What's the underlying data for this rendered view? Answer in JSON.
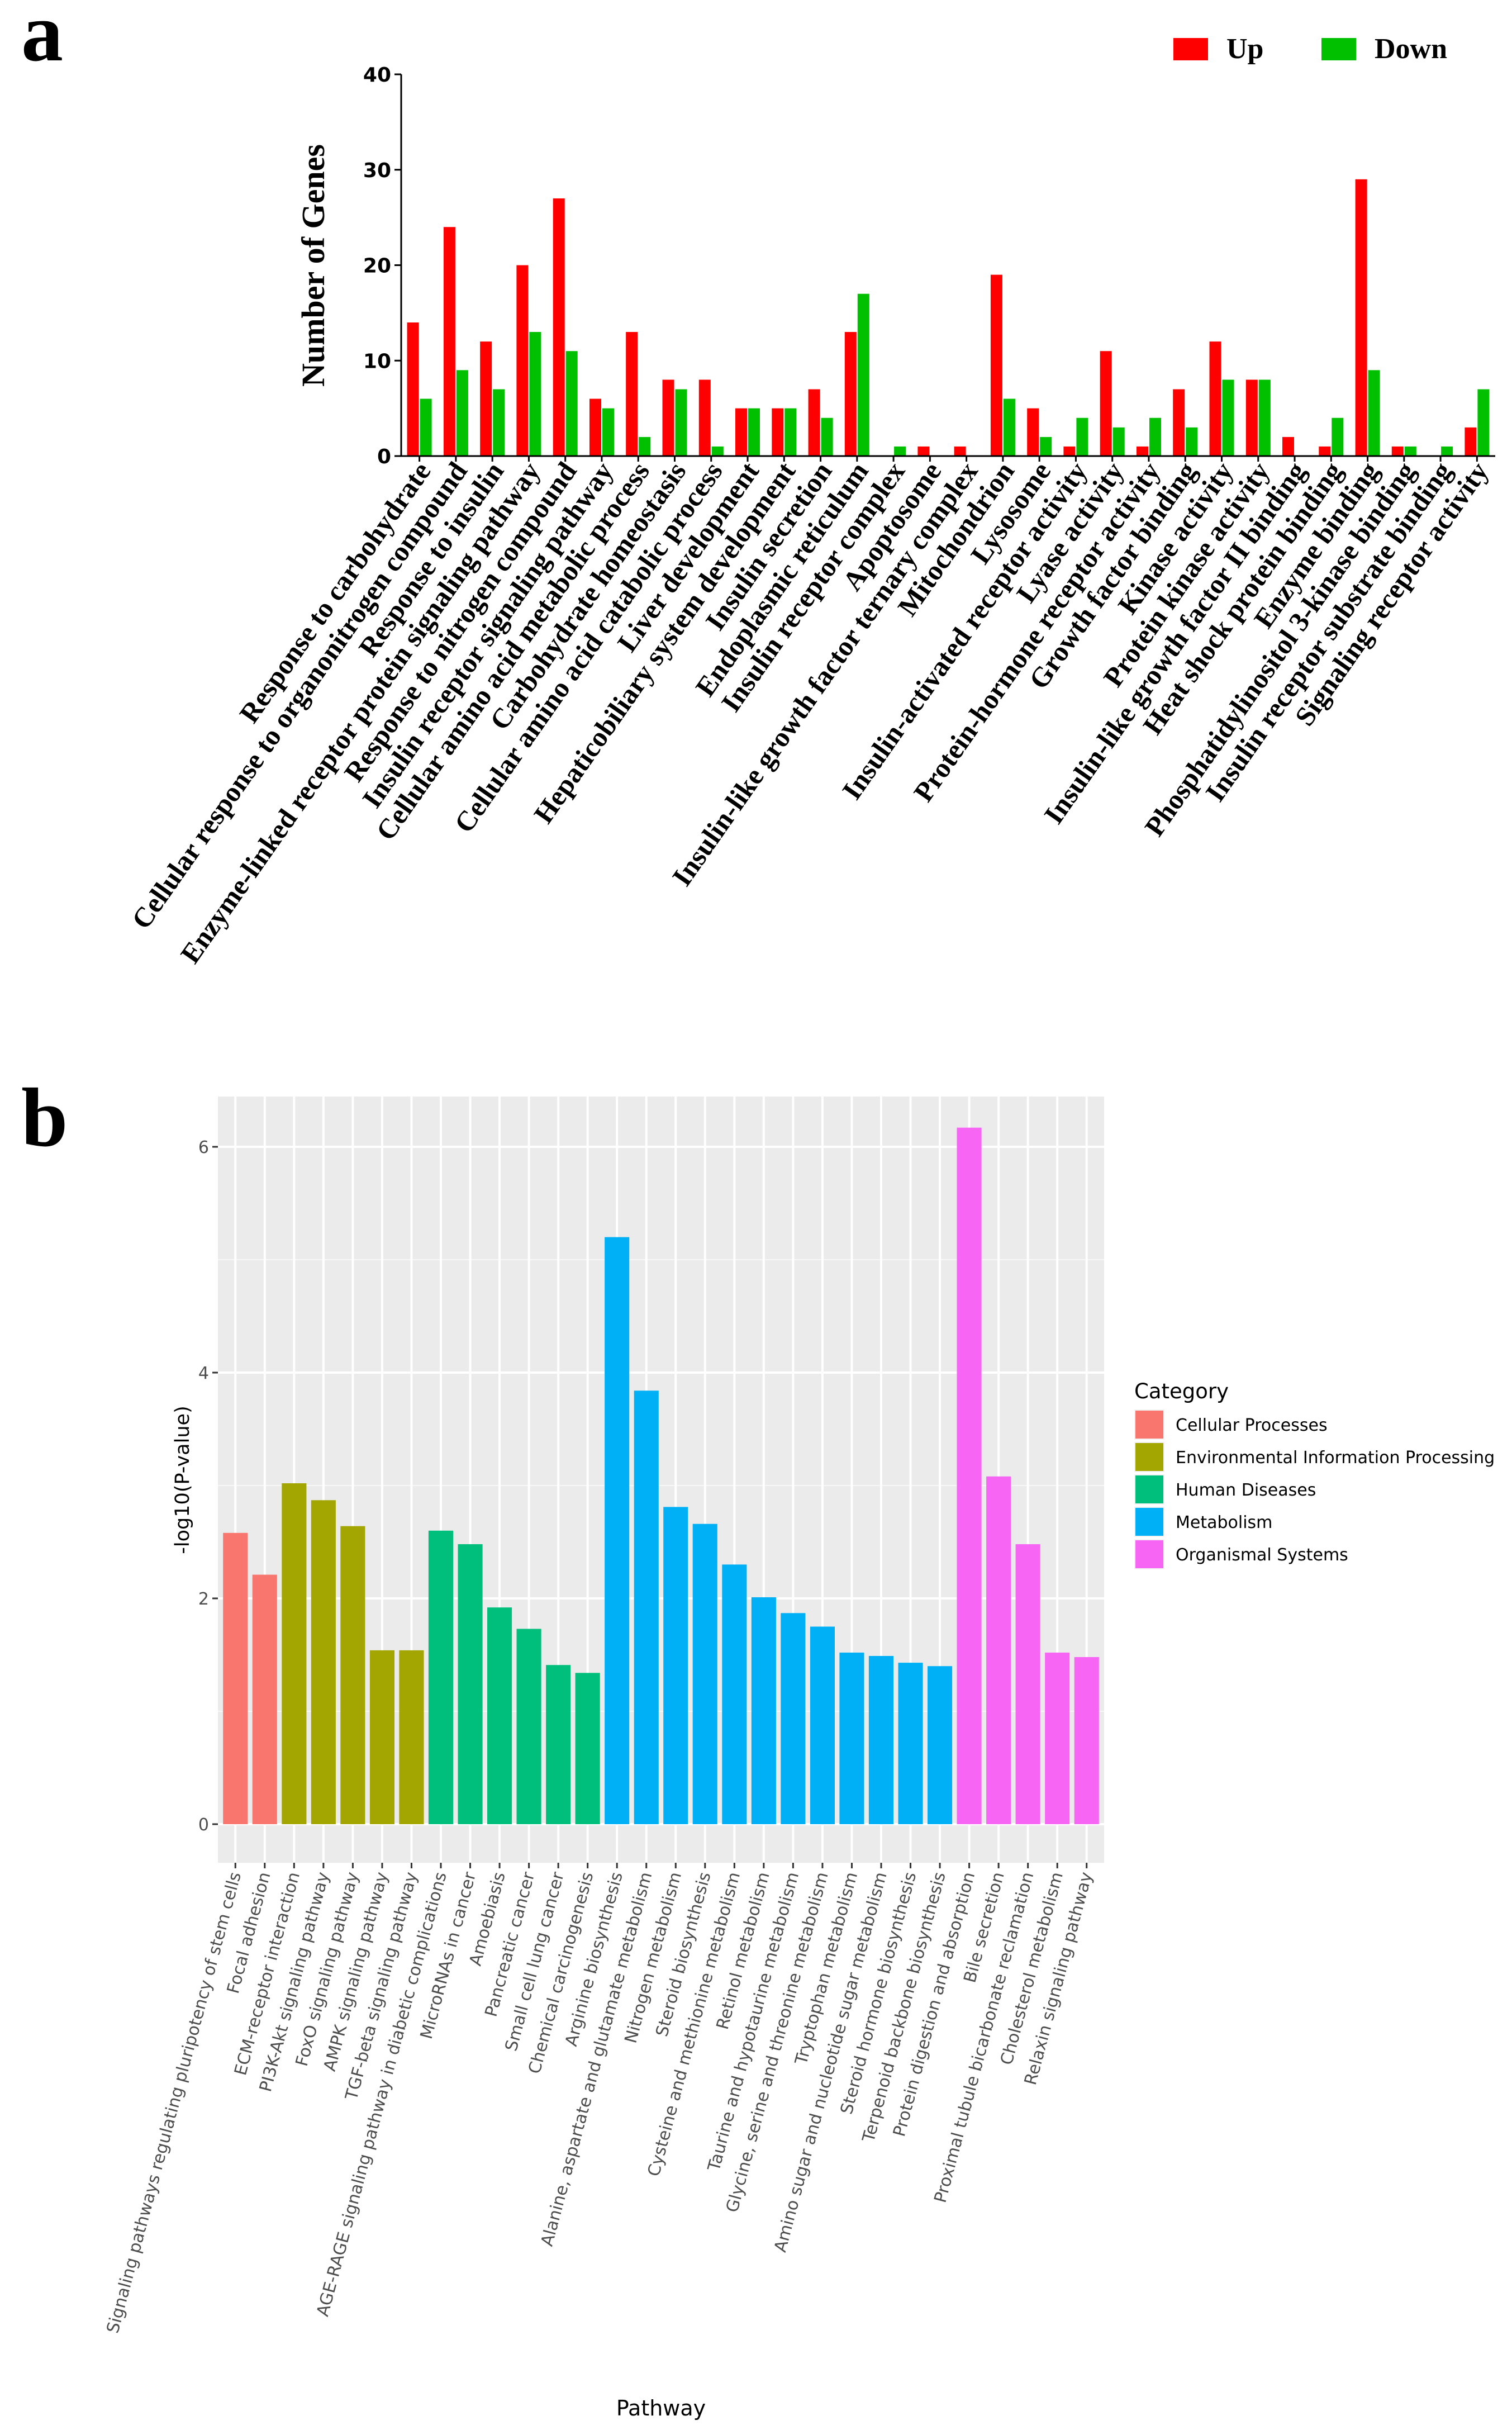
{
  "chart_data": [
    {
      "panel": "a",
      "type": "bar",
      "title": "",
      "xlabel": "",
      "ylabel": "Number of Genes",
      "ylim": [
        0,
        40
      ],
      "yticks": [
        0,
        10,
        20,
        30,
        40
      ],
      "legend_position": "top-right",
      "categories": [
        "Response to carbohydrate",
        "Cellular response to organonitrogen compound",
        "Response to insulin",
        "Enzyme-linked receptor protein signaling pathway",
        "Response to nitrogen compound",
        "Insulin receptor signaling pathway",
        "Cellular amino acid metabolic process",
        "Carbohydrate homeostasis",
        "Cellular amino acid catabolic process",
        "Liver development",
        "Hepaticobiliary system development",
        "Insulin secretion",
        "Endoplasmic reticulum",
        "Insulin receptor complex",
        "Apoptosome",
        "Insulin-like growth factor ternary complex",
        "Mitochondrion",
        "Lysosome",
        "Insulin-activated receptor activity",
        "Lyase activity",
        "Protein-hormone receptor activity",
        "Growth factor binding",
        "Kinase activity",
        "Protein kinase activity",
        "Insulin-like growth factor II binding",
        "Heat shock protein binding",
        "Enzyme binding",
        "Phosphatidylinositol 3-kinase binding",
        "Insulin receptor substrate binding",
        "Signaling receptor activity"
      ],
      "series": [
        {
          "name": "Up",
          "color": "#ff0000",
          "values": [
            14,
            24,
            12,
            20,
            27,
            6,
            13,
            8,
            8,
            5,
            5,
            7,
            13,
            0,
            1,
            1,
            19,
            5,
            1,
            11,
            1,
            7,
            12,
            8,
            2,
            1,
            29,
            1,
            0,
            3
          ]
        },
        {
          "name": "Down",
          "color": "#00c000",
          "values": [
            6,
            9,
            7,
            13,
            11,
            5,
            2,
            7,
            1,
            5,
            5,
            4,
            17,
            1,
            0,
            0,
            6,
            2,
            4,
            3,
            4,
            3,
            8,
            8,
            0,
            4,
            9,
            1,
            1,
            7
          ]
        }
      ]
    },
    {
      "panel": "b",
      "type": "bar",
      "title": "",
      "xlabel": "Pathway",
      "ylabel": "-log10(P-value)",
      "ylim": [
        0,
        6.4
      ],
      "yticks": [
        0,
        2,
        4,
        6
      ],
      "grid": true,
      "legend_title": "Category",
      "legend_position": "right",
      "category_colors": {
        "Cellular Processes": "#f8766d",
        "Environmental Information Processing": "#a3a500",
        "Human Diseases": "#00bf7d",
        "Metabolism": "#00b0f6",
        "Organismal Systems": "#f765f5"
      },
      "legend": [
        "Cellular Processes",
        "Environmental Information Processing",
        "Human Diseases",
        "Metabolism",
        "Organismal Systems"
      ],
      "bars": [
        {
          "label": "Signaling pathways regulating pluripotency of stem cells",
          "value": 2.58,
          "category": "Cellular Processes"
        },
        {
          "label": "Focal adhesion",
          "value": 2.21,
          "category": "Cellular Processes"
        },
        {
          "label": "ECM-receptor interaction",
          "value": 3.02,
          "category": "Environmental Information Processing"
        },
        {
          "label": "PI3K-Akt signaling pathway",
          "value": 2.87,
          "category": "Environmental Information Processing"
        },
        {
          "label": "FoxO signaling pathway",
          "value": 2.64,
          "category": "Environmental Information Processing"
        },
        {
          "label": "AMPK signaling pathway",
          "value": 1.54,
          "category": "Environmental Information Processing"
        },
        {
          "label": "TGF-beta signaling pathway",
          "value": 1.54,
          "category": "Environmental Information Processing"
        },
        {
          "label": "AGE-RAGE signaling pathway in diabetic complications",
          "value": 2.6,
          "category": "Human Diseases"
        },
        {
          "label": "MicroRNAs in cancer",
          "value": 2.48,
          "category": "Human Diseases"
        },
        {
          "label": "Amoebiasis",
          "value": 1.92,
          "category": "Human Diseases"
        },
        {
          "label": "Pancreatic cancer",
          "value": 1.73,
          "category": "Human Diseases"
        },
        {
          "label": "Small cell lung cancer",
          "value": 1.41,
          "category": "Human Diseases"
        },
        {
          "label": "Chemical carcinogenesis",
          "value": 1.34,
          "category": "Human Diseases"
        },
        {
          "label": "Arginine biosynthesis",
          "value": 5.2,
          "category": "Metabolism"
        },
        {
          "label": "Alanine, aspartate and glutamate metabolism",
          "value": 3.84,
          "category": "Metabolism"
        },
        {
          "label": "Nitrogen metabolism",
          "value": 2.81,
          "category": "Metabolism"
        },
        {
          "label": "Steroid biosynthesis",
          "value": 2.66,
          "category": "Metabolism"
        },
        {
          "label": "Cysteine and methionine metabolism",
          "value": 2.3,
          "category": "Metabolism"
        },
        {
          "label": "Retinol metabolism",
          "value": 2.01,
          "category": "Metabolism"
        },
        {
          "label": "Taurine and hypotaurine metabolism",
          "value": 1.87,
          "category": "Metabolism"
        },
        {
          "label": "Glycine, serine and threonine metabolism",
          "value": 1.75,
          "category": "Metabolism"
        },
        {
          "label": "Tryptophan metabolism",
          "value": 1.52,
          "category": "Metabolism"
        },
        {
          "label": "Amino sugar and nucleotide sugar metabolism",
          "value": 1.49,
          "category": "Metabolism"
        },
        {
          "label": "Steroid hormone biosynthesis",
          "value": 1.43,
          "category": "Metabolism"
        },
        {
          "label": "Terpenoid backbone biosynthesis",
          "value": 1.4,
          "category": "Metabolism"
        },
        {
          "label": "Protein digestion and absorption",
          "value": 6.17,
          "category": "Organismal Systems"
        },
        {
          "label": "Bile secretion",
          "value": 3.08,
          "category": "Organismal Systems"
        },
        {
          "label": "Proximal tubule bicarbonate reclamation",
          "value": 2.48,
          "category": "Organismal Systems"
        },
        {
          "label": "Cholesterol metabolism",
          "value": 1.52,
          "category": "Organismal Systems"
        },
        {
          "label": "Relaxin signaling pathway",
          "value": 1.48,
          "category": "Organismal Systems"
        }
      ]
    }
  ]
}
